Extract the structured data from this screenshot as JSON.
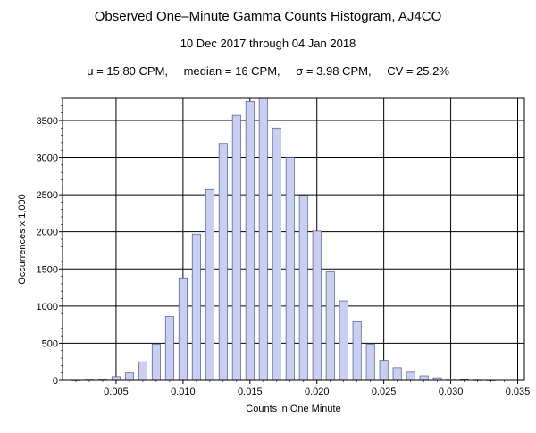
{
  "chart_data": {
    "type": "bar",
    "title": "Observed One–Minute Gamma Counts Histogram, AJ4CO",
    "subtitle": "10 Dec 2017 through 04 Jan 2018",
    "stats": {
      "mu": "μ = 15.80 CPM,",
      "median": "median = 16 CPM,",
      "sigma": "σ = 3.98 CPM,",
      "cv": "CV = 25.2%"
    },
    "xlabel": "Counts in One Minute",
    "ylabel": "Occurrences x 1,000",
    "xlim": [
      0.001,
      0.0355
    ],
    "ylim": [
      0,
      3800
    ],
    "grid": true,
    "bar_color": "#c8cff0",
    "bar_edge": "#4a5a96",
    "xticks": [
      0.005,
      0.01,
      0.015,
      0.02,
      0.025,
      0.03,
      0.035
    ],
    "xtick_labels": [
      "0.005",
      "0.010",
      "0.015",
      "0.020",
      "0.025",
      "0.030",
      "0.035"
    ],
    "yticks": [
      0,
      500,
      1000,
      1500,
      2000,
      2500,
      3000,
      3500
    ],
    "ytick_labels": [
      "0",
      "500",
      "1000",
      "1500",
      "2000",
      "2500",
      "3000",
      "3500"
    ],
    "x": [
      0.002,
      0.003,
      0.004,
      0.005,
      0.006,
      0.007,
      0.008,
      0.009,
      0.01,
      0.011,
      0.012,
      0.013,
      0.014,
      0.015,
      0.016,
      0.017,
      0.018,
      0.019,
      0.02,
      0.021,
      0.022,
      0.023,
      0.024,
      0.025,
      0.026,
      0.027,
      0.028,
      0.029,
      0.03,
      0.031,
      0.032,
      0.033
    ],
    "values": [
      2,
      5,
      12,
      50,
      100,
      250,
      490,
      860,
      1380,
      1970,
      2570,
      3190,
      3570,
      3760,
      3800,
      3400,
      3000,
      2490,
      2010,
      1460,
      1070,
      790,
      490,
      270,
      170,
      110,
      60,
      35,
      20,
      8,
      3,
      1
    ]
  }
}
